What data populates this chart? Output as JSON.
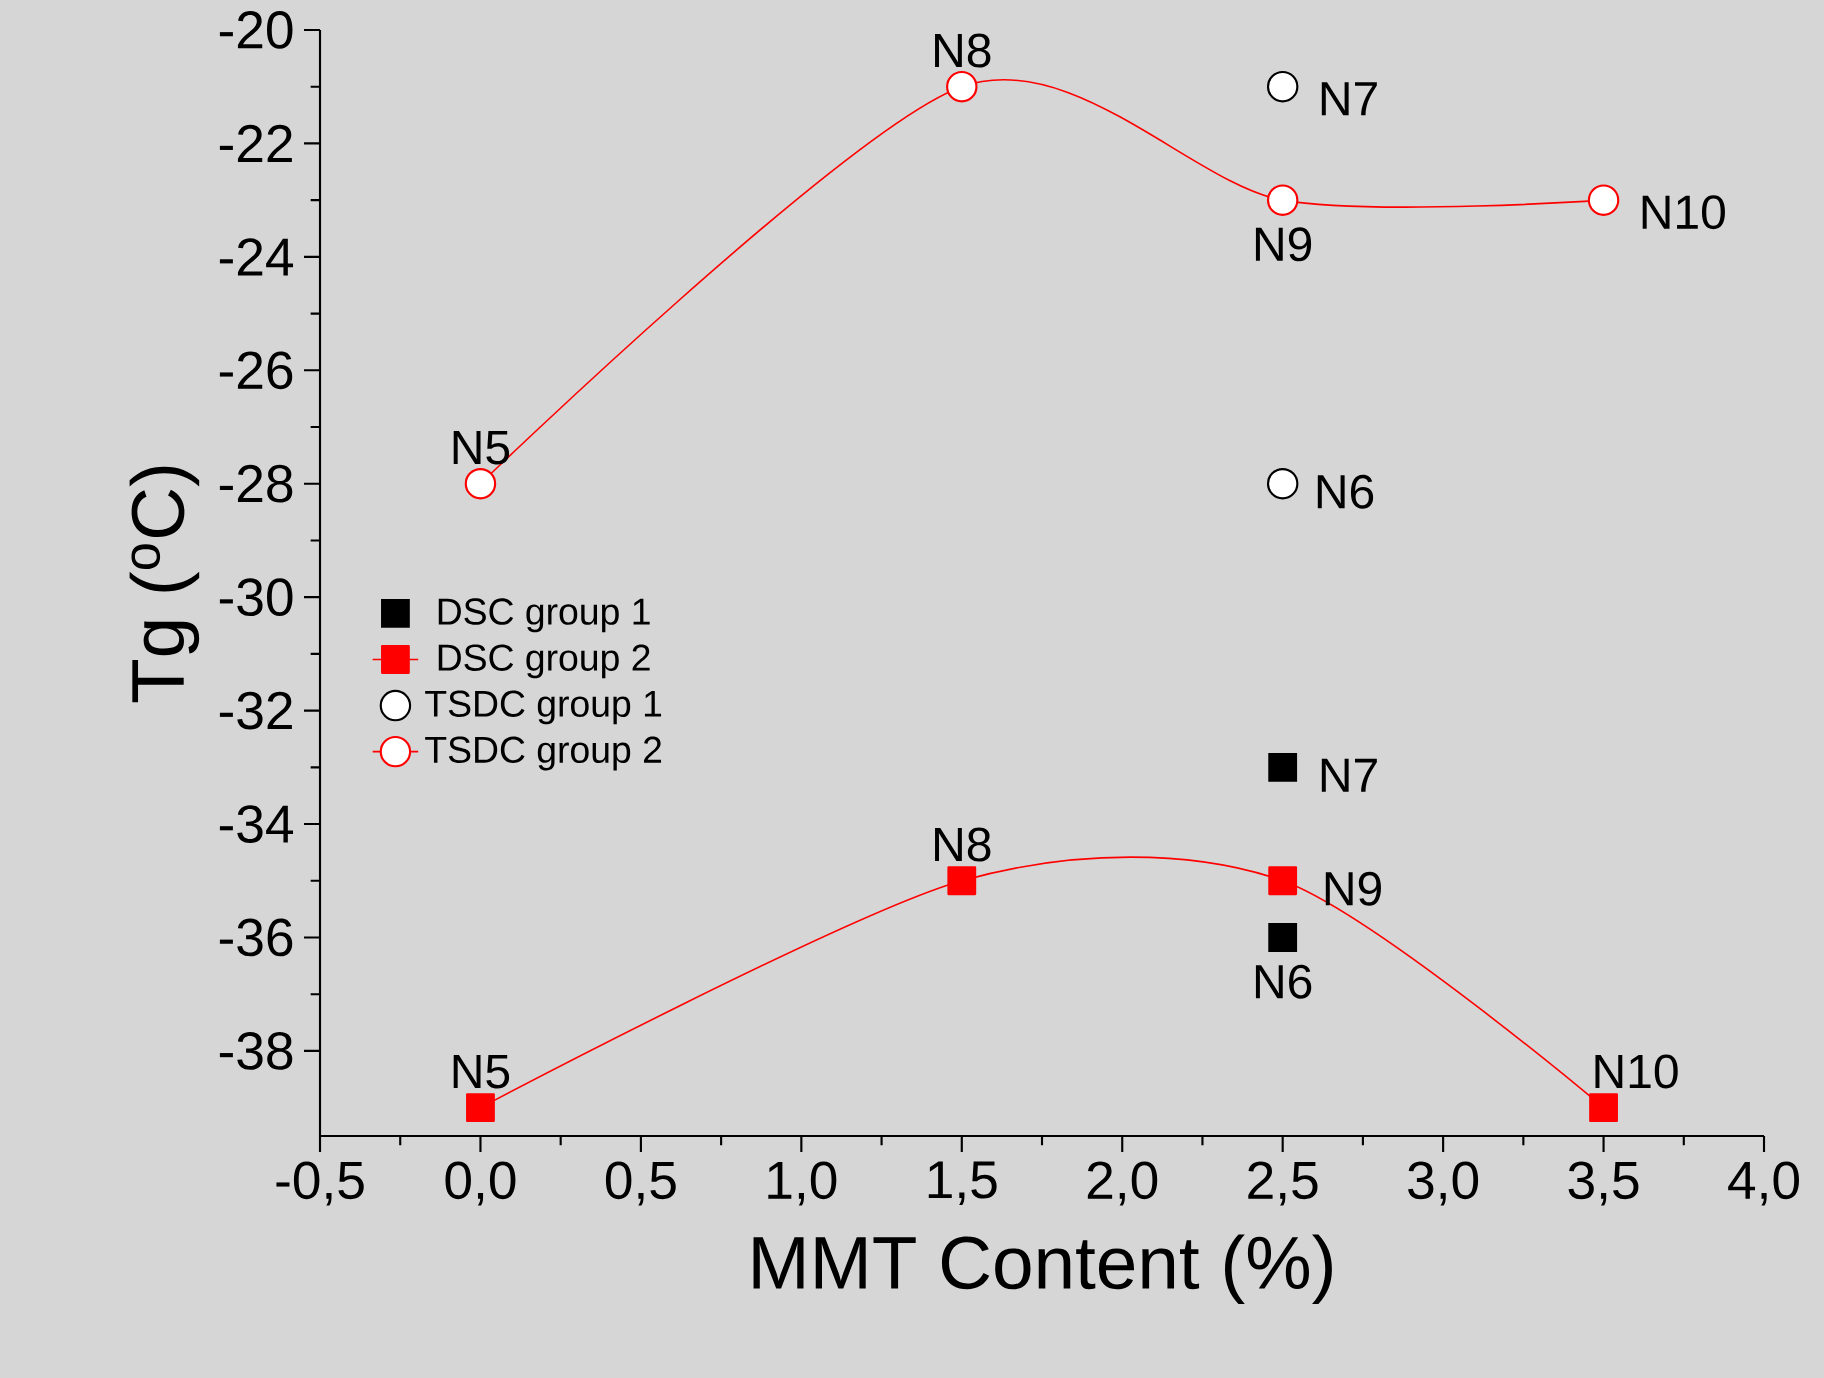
{
  "chart_data": {
    "type": "scatter",
    "xlabel": "MMT Content (%)",
    "ylabel": "Tg ($^{o}$C)",
    "xlim": [
      -0.5,
      4.0
    ],
    "ylim": [
      -39.5,
      -20
    ],
    "xticks": [
      {
        "value": -0.5,
        "label": "-0,5"
      },
      {
        "value": 0,
        "label": "0,0"
      },
      {
        "value": 0.5,
        "label": "0,5"
      },
      {
        "value": 1,
        "label": "1,0"
      },
      {
        "value": 1.5,
        "label": "1,5"
      },
      {
        "value": 2,
        "label": "2,0"
      },
      {
        "value": 2.5,
        "label": "2,5"
      },
      {
        "value": 3,
        "label": "3,0"
      },
      {
        "value": 3.5,
        "label": "3,5"
      },
      {
        "value": 4,
        "label": "4,0"
      }
    ],
    "yticks": [
      -38,
      -36,
      -34,
      -32,
      -30,
      -28,
      -26,
      -24,
      -22,
      -20
    ],
    "legend": "left",
    "series": [
      {
        "name": "DSC group 1",
        "marker": "square",
        "color": "#000000",
        "x": [
          2.5,
          2.5
        ],
        "values": [
          -33,
          -36
        ]
      },
      {
        "name": "DSC group 2",
        "type": "line",
        "marker": "square",
        "color": "#ff0000",
        "x": [
          0,
          1.5,
          2.5,
          3.5
        ],
        "values": [
          -39,
          -35,
          -35,
          -39
        ]
      },
      {
        "name": "TSDC group 1",
        "marker": "circle",
        "color": "#000000",
        "x": [
          2.5,
          2.5
        ],
        "values": [
          -21,
          -28
        ]
      },
      {
        "name": "TSDC group 2",
        "type": "line",
        "marker": "circle",
        "color": "#ff0000",
        "x": [
          0,
          1.5,
          2.5,
          3.5
        ],
        "values": [
          -28,
          -21,
          -23,
          -23
        ]
      }
    ],
    "annotations": [
      {
        "text": "N5",
        "x": 0,
        "y": -28
      },
      {
        "text": "N8",
        "x": 1.5,
        "y": -21
      },
      {
        "text": "N7",
        "x": 2.5,
        "y": -21
      },
      {
        "text": "N9",
        "x": 2.5,
        "y": -23
      },
      {
        "text": "N10",
        "x": 3.5,
        "y": -23
      },
      {
        "text": "N6",
        "x": 2.5,
        "y": -28
      },
      {
        "text": "N7",
        "x": 2.5,
        "y": -33
      },
      {
        "text": "N8",
        "x": 1.5,
        "y": -35
      },
      {
        "text": "N9",
        "x": 2.5,
        "y": -35
      },
      {
        "text": "N6",
        "x": 2.5,
        "y": -36
      },
      {
        "text": "N5",
        "x": 0,
        "y": -39
      },
      {
        "text": "N10",
        "x": 3.5,
        "y": -39
      }
    ]
  }
}
